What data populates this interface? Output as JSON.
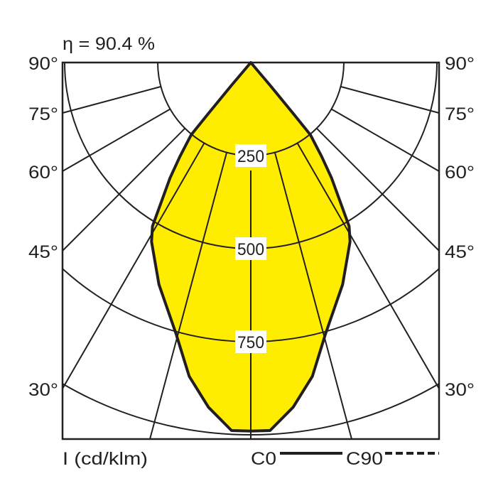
{
  "chart_data": {
    "type": "polar",
    "title": "η = 90.4 %",
    "unit_label": "I (cd/klm)",
    "radial_ticks": [
      250,
      500,
      750,
      1000
    ],
    "radial_tick_labels": [
      "250",
      "500",
      "750"
    ],
    "angle_ticks": [
      0,
      15,
      30,
      45,
      60,
      75,
      90
    ],
    "angle_tick_labels": [
      "30°",
      "45°",
      "60°",
      "75°",
      "90°"
    ],
    "angle_label_values": [
      30,
      45,
      60,
      75,
      90
    ],
    "grid": true,
    "legend_placement": "bottom-right",
    "fill_color": "#ffed00",
    "line_color": "#231f20",
    "series": [
      {
        "name": "C0",
        "style": "solid",
        "angles": [
          0,
          3,
          7,
          11.1,
          15.4,
          22.5,
          29,
          31,
          35,
          37,
          39.5,
          39.8,
          40.2,
          40.5
        ],
        "values": [
          990,
          990,
          933,
          859,
          756,
          645,
          550,
          513,
          378,
          316,
          252,
          179,
          80,
          0
        ]
      },
      {
        "name": "C90",
        "style": "dashed",
        "angles": [
          0,
          3,
          7,
          11.1,
          15.4,
          22.5,
          29,
          31,
          35,
          37,
          39.5,
          39.8,
          40.2,
          40.5
        ],
        "values": [
          990,
          990,
          933,
          859,
          756,
          645,
          550,
          513,
          378,
          316,
          252,
          179,
          80,
          0
        ]
      }
    ]
  }
}
